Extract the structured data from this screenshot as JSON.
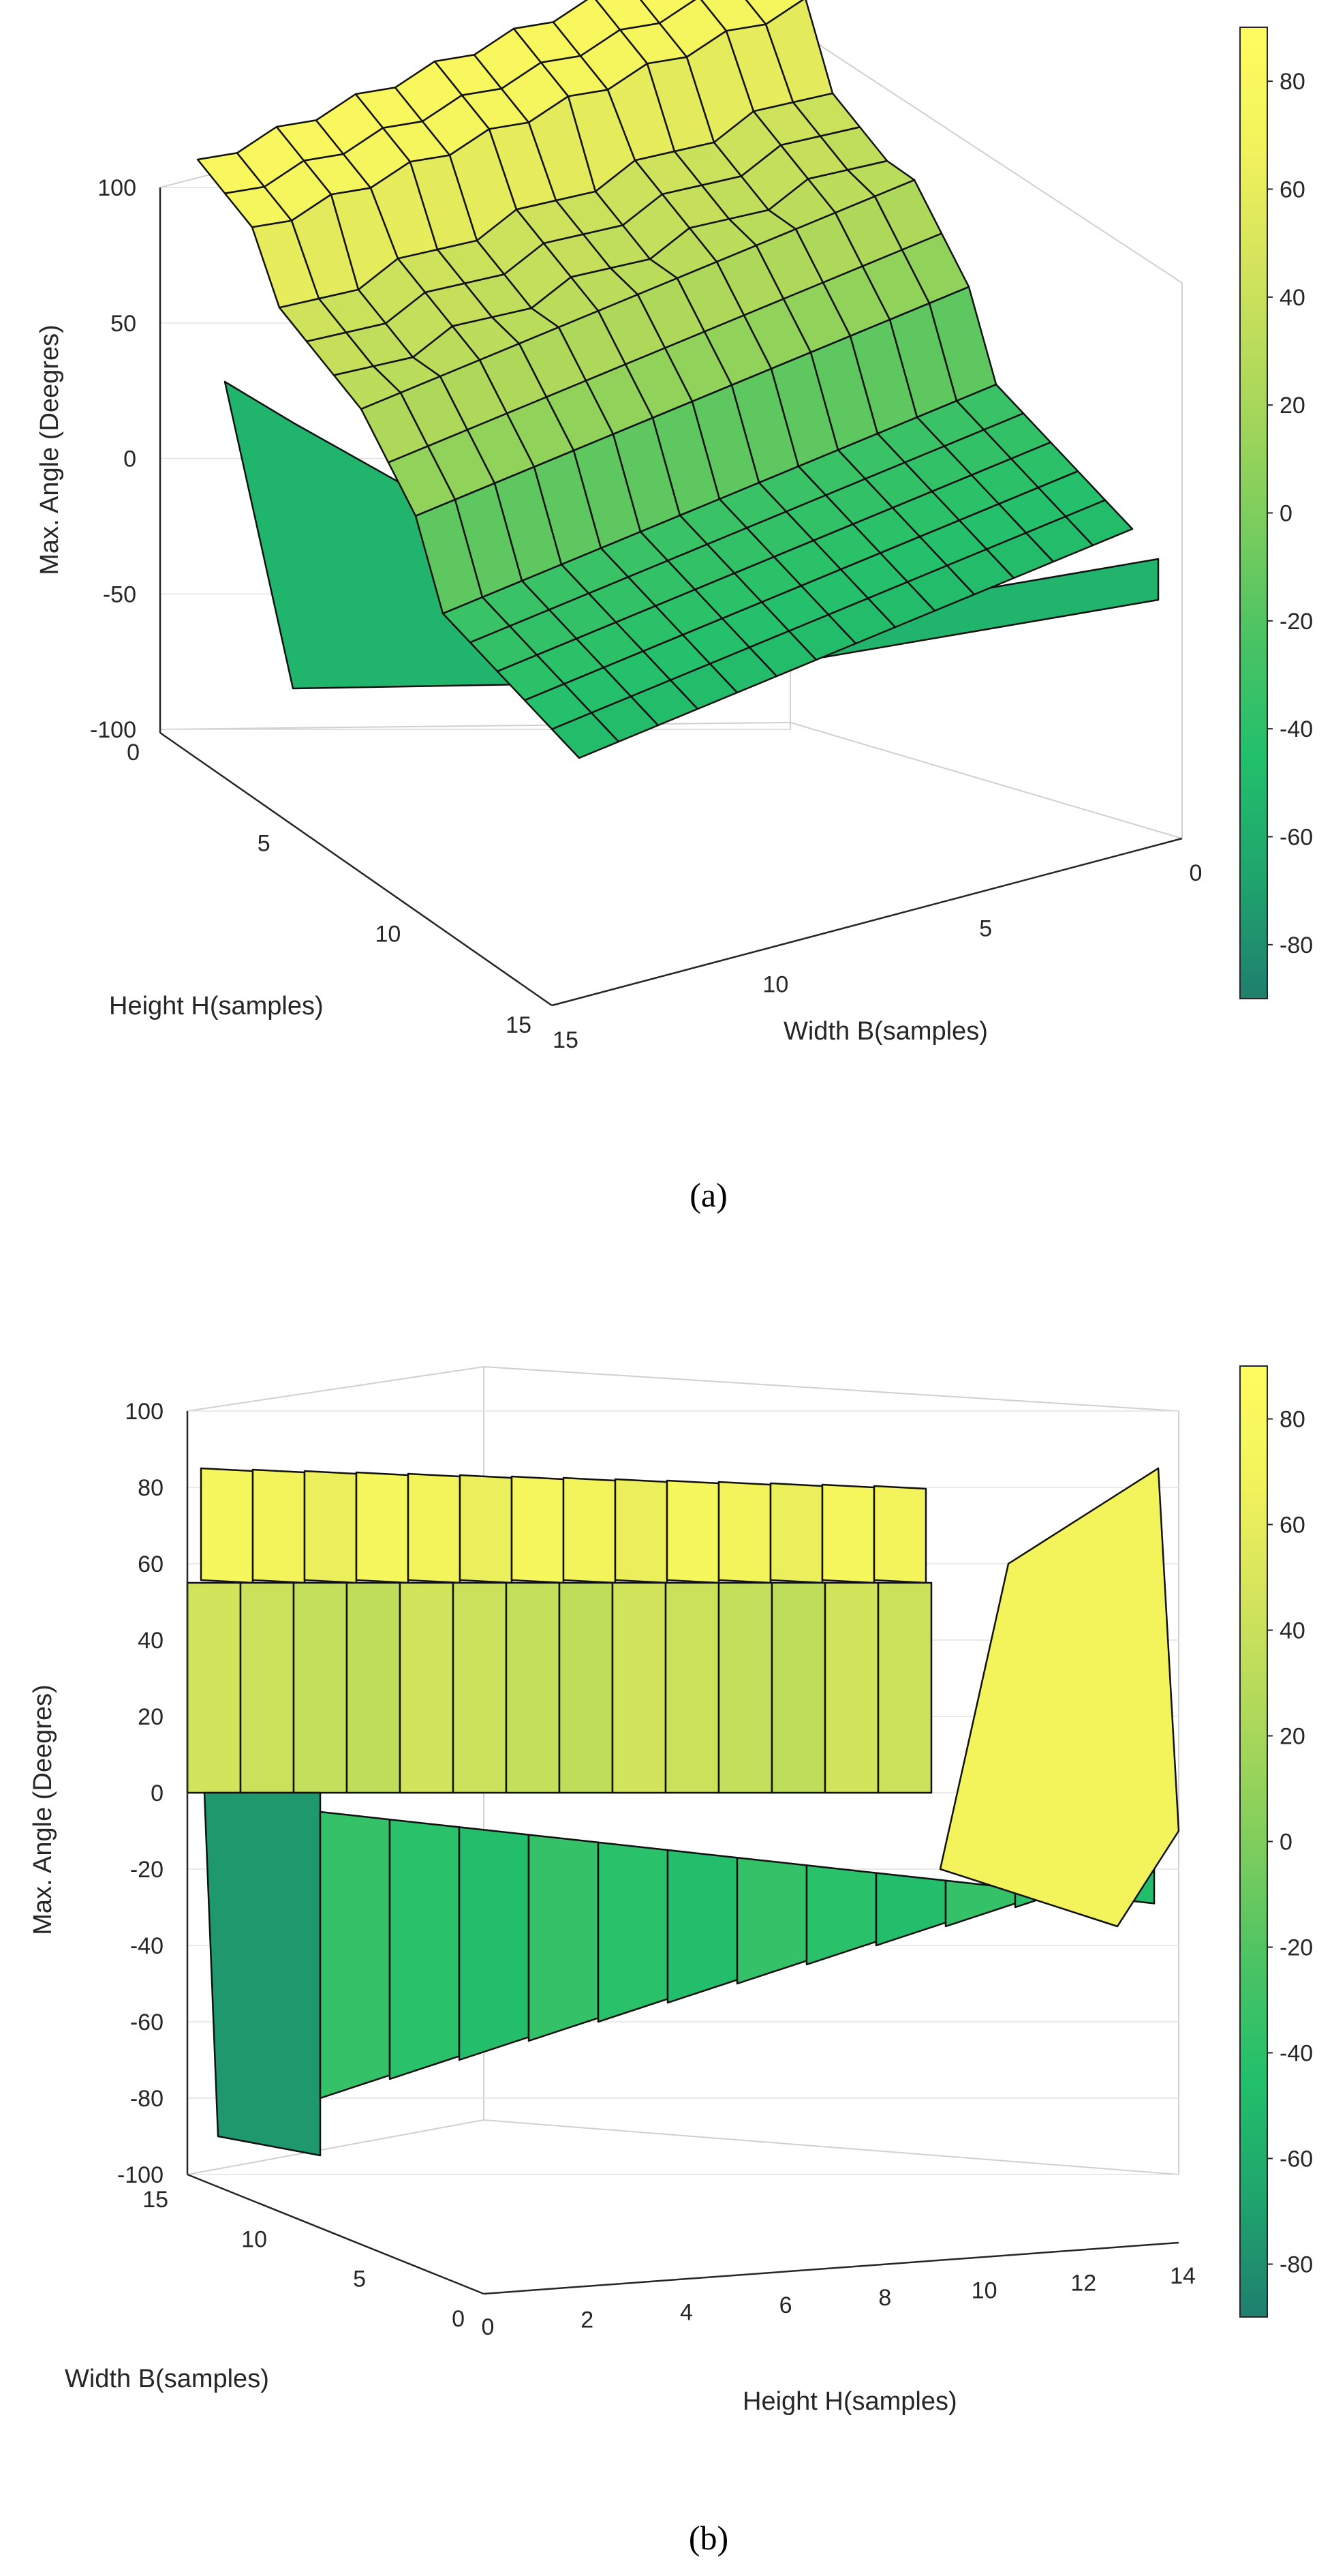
{
  "figure": {
    "caption_a": "(a)",
    "caption_b": "(b)"
  },
  "chart_data": [
    {
      "type": "surface3d",
      "panel": "a",
      "title": "",
      "zlabel": "Max. Angle (Deegres)",
      "xlabel": "Height H(samples)",
      "ylabel": "Width  B(samples)",
      "zlim": [
        -100,
        100
      ],
      "zticks": [
        "100",
        "50",
        "0",
        "-50",
        "-100"
      ],
      "xticks": [
        "0",
        "5",
        "10",
        "15"
      ],
      "yticks": [
        "15",
        "10",
        "5",
        "0"
      ],
      "colorbar": {
        "range": [
          -90,
          90
        ],
        "ticks": [
          "80",
          "60",
          "40",
          "20",
          "0",
          "-20",
          "-40",
          "-60",
          "-80"
        ],
        "colors": [
          "#1f7f6e",
          "#1fa56d",
          "#22c06b",
          "#4cc363",
          "#7fce5c",
          "#acd85a",
          "#d2e35c",
          "#f2f25c",
          "#fdfd60"
        ]
      },
      "grid": true,
      "description_values": {
        "plateau_level": 85,
        "mid_level": 30,
        "floor_level": -75
      }
    },
    {
      "type": "surface3d",
      "panel": "b",
      "title": "",
      "zlabel": "Max. Angle (Deegres)",
      "xlabel": "Height H(samples)",
      "ylabel": "Width  B(samples)",
      "zlim": [
        -100,
        100
      ],
      "zticks": [
        "100",
        "80",
        "60",
        "40",
        "20",
        "0",
        "-20",
        "-40",
        "-60",
        "-80",
        "-100"
      ],
      "xticks": [
        "0",
        "2",
        "4",
        "6",
        "8",
        "10",
        "12",
        "14"
      ],
      "yticks": [
        "15",
        "10",
        "5",
        "0"
      ],
      "colorbar": {
        "range": [
          -90,
          90
        ],
        "ticks": [
          "80",
          "60",
          "40",
          "20",
          "0",
          "-20",
          "-40",
          "-60",
          "-80"
        ],
        "colors": [
          "#1f7f6e",
          "#1fa56d",
          "#22c06b",
          "#4cc363",
          "#7fce5c",
          "#acd85a",
          "#d2e35c",
          "#f2f25c",
          "#fdfd60"
        ]
      },
      "grid": true,
      "description_values": {
        "plateau_level": 85,
        "mid_level": 30,
        "floor_level": -80
      }
    }
  ]
}
